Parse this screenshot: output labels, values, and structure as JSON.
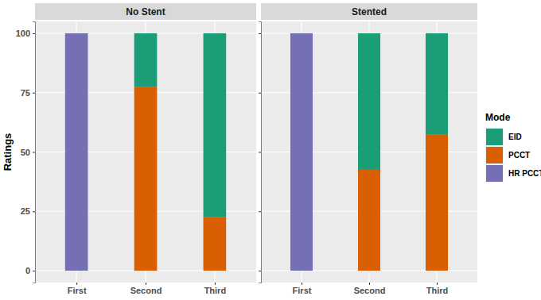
{
  "chart_data": {
    "type": "bar",
    "stacked": true,
    "grid": true,
    "legend": "right",
    "y_label": "Ratings",
    "legend_title": "Mode",
    "facets": [
      "No Stent",
      "Stented"
    ],
    "categories": [
      "First",
      "Second",
      "Third"
    ],
    "series": [
      {
        "name": "EID",
        "color": "#1b9e77",
        "values": [
          [
            0,
            22.7,
            77.3
          ],
          [
            0,
            57.5,
            42.5
          ]
        ]
      },
      {
        "name": "PCCT",
        "color": "#d95f02",
        "values": [
          [
            0,
            77.3,
            22.7
          ],
          [
            0,
            42.5,
            57.5
          ]
        ]
      },
      {
        "name": "HR PCCT",
        "color": "#7570b3",
        "values": [
          [
            100,
            0,
            0
          ],
          [
            100,
            0,
            0
          ]
        ]
      }
    ],
    "ylim": [
      -5,
      105
    ],
    "yticks": [
      0,
      25,
      50,
      75,
      100
    ]
  }
}
